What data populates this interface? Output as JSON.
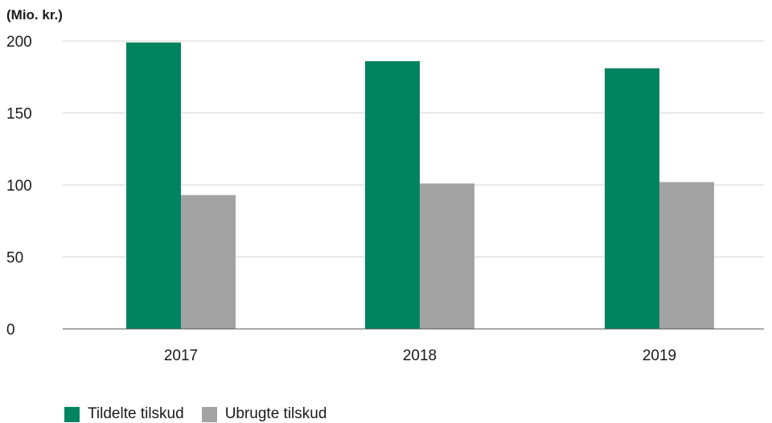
{
  "chart_data": {
    "type": "bar",
    "unit_label": "(Mio. kr.)",
    "categories": [
      "2017",
      "2018",
      "2019"
    ],
    "series": [
      {
        "name": "Tildelte tilskud",
        "color": "#00845f",
        "values": [
          199,
          186,
          181
        ]
      },
      {
        "name": "Ubrugte tilskud",
        "color": "#a3a3a3",
        "values": [
          93,
          101,
          102
        ]
      }
    ],
    "ylim": [
      0,
      200
    ],
    "yticks": [
      "0",
      "50",
      "100",
      "150",
      "200"
    ],
    "grid": true,
    "legend_position": "bottom-left"
  }
}
